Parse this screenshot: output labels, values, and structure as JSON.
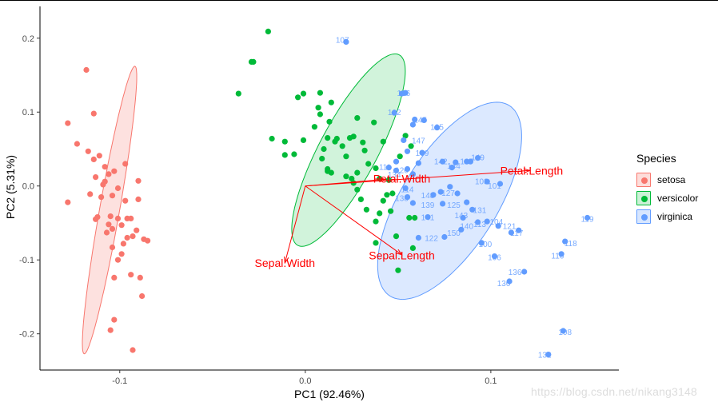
{
  "chart_data": {
    "type": "scatter",
    "xlabel": "PC1 (92.46%)",
    "ylabel": "PC2 (5.31%)",
    "xlim": [
      -0.143,
      0.169
    ],
    "ylim": [
      -0.249,
      0.243
    ],
    "x_ticks": [
      -0.1,
      0.0,
      0.1
    ],
    "x_tick_labels": [
      "-0.1",
      "0.0",
      "0.1"
    ],
    "y_ticks": [
      -0.2,
      -0.1,
      0.0,
      0.1,
      0.2
    ],
    "y_tick_labels": [
      "-0.2",
      "-0.1",
      "0.0",
      "0.1",
      "0.2"
    ],
    "grid": false,
    "legend_position": "right",
    "legend_title": "Species",
    "colors": {
      "setosa": "#f8766d",
      "versicolor": "#00ba38",
      "virginica": "#619cff",
      "arrow": "#ff0000"
    },
    "series": [
      {
        "name": "setosa",
        "points": [
          [
            -0.128,
            0.085
          ],
          [
            -0.118,
            0.157
          ],
          [
            -0.114,
            0.098
          ],
          [
            -0.123,
            0.057
          ],
          [
            -0.117,
            0.047
          ],
          [
            -0.114,
            0.036
          ],
          [
            -0.111,
            0.041
          ],
          [
            -0.108,
            0.026
          ],
          [
            -0.103,
            0.02
          ],
          [
            -0.097,
            0.03
          ],
          [
            -0.09,
            0.007
          ],
          [
            -0.113,
            0.012
          ],
          [
            -0.106,
            0.016
          ],
          [
            -0.109,
            0.002
          ],
          [
            -0.101,
            -0.003
          ],
          [
            -0.116,
            -0.011
          ],
          [
            -0.11,
            -0.015
          ],
          [
            -0.104,
            -0.013
          ],
          [
            -0.097,
            -0.02
          ],
          [
            -0.09,
            -0.018
          ],
          [
            -0.128,
            -0.022
          ],
          [
            -0.113,
            -0.045
          ],
          [
            -0.106,
            -0.052
          ],
          [
            -0.104,
            -0.058
          ],
          [
            -0.099,
            -0.053
          ],
          [
            -0.094,
            -0.044
          ],
          [
            -0.091,
            -0.06
          ],
          [
            -0.096,
            -0.07
          ],
          [
            -0.087,
            -0.072
          ],
          [
            -0.104,
            -0.083
          ],
          [
            -0.101,
            -0.1
          ],
          [
            -0.098,
            -0.078
          ],
          [
            -0.093,
            -0.068
          ],
          [
            -0.103,
            -0.124
          ],
          [
            -0.094,
            -0.12
          ],
          [
            -0.088,
            -0.149
          ],
          [
            -0.085,
            -0.074
          ],
          [
            -0.089,
            -0.124
          ],
          [
            -0.103,
            -0.181
          ],
          [
            -0.105,
            -0.195
          ],
          [
            -0.093,
            -0.222
          ],
          [
            -0.096,
            -0.044
          ],
          [
            -0.107,
            -0.063
          ],
          [
            -0.112,
            -0.042
          ],
          [
            -0.105,
            -0.041
          ],
          [
            -0.101,
            -0.044
          ],
          [
            -0.108,
            0.006
          ],
          [
            -0.099,
            -0.092
          ]
        ]
      },
      {
        "name": "versicolor",
        "points": [
          [
            -0.02,
            0.209
          ],
          [
            -0.028,
            0.168
          ],
          [
            -0.029,
            0.168
          ],
          [
            -0.036,
            0.125
          ],
          [
            -0.011,
            0.06
          ],
          [
            -0.001,
            0.062
          ],
          [
            -0.006,
            0.043
          ],
          [
            -0.011,
            0.042
          ],
          [
            -0.018,
            0.064
          ],
          [
            0.008,
            0.126
          ],
          [
            -0.004,
            0.12
          ],
          [
            -0.001,
            0.125
          ],
          [
            0.007,
            0.106
          ],
          [
            0.014,
            0.113
          ],
          [
            0.008,
            0.097
          ],
          [
            0.005,
            0.08
          ],
          [
            0.013,
            0.087
          ],
          [
            0.016,
            0.06
          ],
          [
            0.012,
            0.065
          ],
          [
            0.01,
            0.05
          ],
          [
            0.009,
            0.037
          ],
          [
            0.012,
            0.02
          ],
          [
            0.014,
            0.018
          ],
          [
            0.02,
            0.054
          ],
          [
            0.022,
            0.04
          ],
          [
            0.024,
            0.065
          ],
          [
            0.026,
            0.067
          ],
          [
            0.031,
            0.059
          ],
          [
            0.032,
            0.048
          ],
          [
            0.034,
            0.03
          ],
          [
            0.038,
            0.024
          ],
          [
            0.04,
            0.01
          ],
          [
            0.028,
            0.018
          ],
          [
            0.025,
            0.01
          ],
          [
            0.026,
            0.004
          ],
          [
            0.028,
            -0.005
          ],
          [
            0.03,
            -0.018
          ],
          [
            0.033,
            -0.032
          ],
          [
            0.038,
            -0.048
          ],
          [
            0.04,
            -0.037
          ],
          [
            0.042,
            -0.02
          ],
          [
            0.044,
            -0.012
          ],
          [
            0.046,
            -0.034
          ],
          [
            0.049,
            -0.068
          ],
          [
            0.056,
            -0.043
          ],
          [
            0.059,
            -0.043
          ],
          [
            0.058,
            -0.084
          ],
          [
            0.038,
            -0.077
          ],
          [
            0.05,
            -0.114
          ],
          [
            0.054,
            0.068
          ],
          [
            0.057,
            0.054
          ],
          [
            0.051,
            0.04
          ],
          [
            0.037,
            0.086
          ],
          [
            0.028,
            0.092
          ],
          [
            0.042,
            0.06
          ],
          [
            0.012,
            0.023
          ],
          [
            0.017,
            0.064
          ],
          [
            0.022,
            0.013
          ],
          [
            0.047,
            -0.01
          ],
          [
            0.045,
            0.008
          ]
        ]
      },
      {
        "name": "virginica",
        "points": [
          [
            0.022,
            0.195
          ],
          [
            0.054,
            0.126
          ],
          [
            0.052,
            0.125
          ],
          [
            0.048,
            0.099
          ],
          [
            0.058,
            0.083
          ],
          [
            0.059,
            0.09
          ],
          [
            0.064,
            0.089
          ],
          [
            0.071,
            0.079
          ],
          [
            0.053,
            0.062
          ],
          [
            0.055,
            0.047
          ],
          [
            0.063,
            0.045
          ],
          [
            0.061,
            0.031
          ],
          [
            0.055,
            0.023
          ],
          [
            0.058,
            0.016
          ],
          [
            0.054,
            -0.003
          ],
          [
            0.055,
            -0.015
          ],
          [
            0.058,
            -0.023
          ],
          [
            0.069,
            -0.012
          ],
          [
            0.073,
            -0.008
          ],
          [
            0.074,
            -0.024
          ],
          [
            0.078,
            -0.001
          ],
          [
            0.082,
            -0.01
          ],
          [
            0.087,
            -0.022
          ],
          [
            0.09,
            -0.032
          ],
          [
            0.085,
            -0.043
          ],
          [
            0.093,
            -0.049
          ],
          [
            0.098,
            -0.048
          ],
          [
            0.104,
            -0.054
          ],
          [
            0.111,
            -0.063
          ],
          [
            0.115,
            -0.06
          ],
          [
            0.074,
            0.033
          ],
          [
            0.081,
            0.032
          ],
          [
            0.087,
            0.033
          ],
          [
            0.093,
            0.038
          ],
          [
            0.098,
            0.006
          ],
          [
            0.105,
            0.003
          ],
          [
            0.079,
            0.025
          ],
          [
            0.089,
            0.033
          ],
          [
            0.084,
            -0.059
          ],
          [
            0.075,
            -0.069
          ],
          [
            0.095,
            -0.077
          ],
          [
            0.102,
            -0.095
          ],
          [
            0.11,
            -0.129
          ],
          [
            0.118,
            -0.116
          ],
          [
            0.138,
            -0.092
          ],
          [
            0.14,
            -0.075
          ],
          [
            0.152,
            -0.043
          ],
          [
            0.139,
            -0.196
          ],
          [
            0.131,
            -0.228
          ],
          [
            0.066,
            -0.042
          ],
          [
            0.061,
            -0.07
          ],
          [
            0.045,
            0.025
          ],
          [
            0.049,
            0.021
          ],
          [
            0.049,
            0.033
          ]
        ]
      }
    ],
    "ellipses": [
      {
        "series": "setosa",
        "cx": -0.1055,
        "cy": -0.0325,
        "rx": 0.1975,
        "ry": 0.0135,
        "angle_deg": 80
      },
      {
        "series": "versicolor",
        "cx": 0.0233,
        "cy": 0.0485,
        "rx": 0.146,
        "ry": 0.0392,
        "angle_deg": 62
      },
      {
        "series": "virginica",
        "cx": 0.0778,
        "cy": -0.02,
        "rx": 0.152,
        "ry": 0.0645,
        "angle_deg": 58
      }
    ],
    "annotations": [
      {
        "point_labels": [
          {
            "text": "107",
            "x": 0.02,
            "y": 0.198,
            "series": "virginica"
          },
          {
            "text": "126",
            "x": 0.053,
            "y": 0.126,
            "series": "virginica"
          },
          {
            "text": "102",
            "x": 0.048,
            "y": 0.1,
            "series": "virginica"
          },
          {
            "text": "145",
            "x": 0.062,
            "y": 0.09,
            "series": "virginica"
          },
          {
            "text": "135",
            "x": 0.071,
            "y": 0.08,
            "series": "virginica"
          },
          {
            "text": "147",
            "x": 0.061,
            "y": 0.062,
            "series": "virginica"
          },
          {
            "text": "149",
            "x": 0.093,
            "y": 0.039,
            "series": "virginica"
          },
          {
            "text": "142",
            "x": 0.073,
            "y": 0.034,
            "series": "virginica"
          },
          {
            "text": "144",
            "x": 0.08,
            "y": 0.028,
            "series": "virginica"
          },
          {
            "text": "137",
            "x": 0.087,
            "y": 0.034,
            "series": "virginica"
          },
          {
            "text": "103",
            "x": 0.095,
            "y": 0.007,
            "series": "virginica"
          },
          {
            "text": "101",
            "x": 0.102,
            "y": 0.001,
            "series": "virginica"
          },
          {
            "text": "148",
            "x": 0.066,
            "y": -0.012,
            "series": "virginica"
          },
          {
            "text": "127",
            "x": 0.077,
            "y": -0.009,
            "series": "virginica"
          },
          {
            "text": "139",
            "x": 0.066,
            "y": -0.025,
            "series": "virginica"
          },
          {
            "text": "125",
            "x": 0.08,
            "y": -0.025,
            "series": "virginica"
          },
          {
            "text": "131",
            "x": 0.094,
            "y": -0.032,
            "series": "virginica"
          },
          {
            "text": "143",
            "x": 0.084,
            "y": -0.039,
            "series": "virginica"
          },
          {
            "text": "141",
            "x": 0.066,
            "y": -0.042,
            "series": "virginica"
          },
          {
            "text": "140",
            "x": 0.087,
            "y": -0.054,
            "series": "virginica"
          },
          {
            "text": "113",
            "x": 0.094,
            "y": -0.051,
            "series": "virginica"
          },
          {
            "text": "104",
            "x": 0.103,
            "y": -0.048,
            "series": "virginica"
          },
          {
            "text": "117",
            "x": 0.114,
            "y": -0.063,
            "series": "virginica"
          },
          {
            "text": "121",
            "x": 0.11,
            "y": -0.054,
            "series": "virginica"
          },
          {
            "text": "150",
            "x": 0.08,
            "y": -0.063,
            "series": "virginica"
          },
          {
            "text": "122",
            "x": 0.068,
            "y": -0.07,
            "series": "virginica"
          },
          {
            "text": "100",
            "x": 0.097,
            "y": -0.078,
            "series": "virginica"
          },
          {
            "text": "106",
            "x": 0.102,
            "y": -0.096,
            "series": "virginica"
          },
          {
            "text": "116",
            "x": 0.136,
            "y": -0.094,
            "series": "virginica"
          },
          {
            "text": "118",
            "x": 0.143,
            "y": -0.077,
            "series": "virginica"
          },
          {
            "text": "119",
            "x": 0.152,
            "y": -0.044,
            "series": "virginica"
          },
          {
            "text": "136",
            "x": 0.113,
            "y": -0.116,
            "series": "virginica"
          },
          {
            "text": "130",
            "x": 0.107,
            "y": -0.131,
            "series": "virginica"
          },
          {
            "text": "108",
            "x": 0.14,
            "y": -0.197,
            "series": "virginica"
          },
          {
            "text": "132",
            "x": 0.129,
            "y": -0.228,
            "series": "virginica"
          },
          {
            "text": "120",
            "x": 0.052,
            "y": 0.022,
            "series": "virginica"
          },
          {
            "text": "134",
            "x": 0.048,
            "y": 0.016,
            "series": "virginica"
          },
          {
            "text": "114",
            "x": 0.055,
            "y": -0.004,
            "series": "virginica"
          },
          {
            "text": "109",
            "x": 0.063,
            "y": 0.045,
            "series": "virginica"
          },
          {
            "text": "111",
            "x": 0.043,
            "y": 0.026,
            "series": "virginica"
          },
          {
            "text": "138",
            "x": 0.052,
            "y": -0.016,
            "series": "virginica"
          }
        ]
      },
      {
        "arrows": [
          {
            "text": "Petal.Length",
            "x": 0.122,
            "y": 0.021
          },
          {
            "text": "Petal.Width",
            "x": 0.052,
            "y": 0.01
          },
          {
            "text": "Sepal.Length",
            "x": 0.052,
            "y": -0.094
          },
          {
            "text": "Sepal.Width",
            "x": -0.011,
            "y": -0.104
          }
        ]
      }
    ]
  },
  "watermark": "https://blog.csdn.net/nikang3148"
}
